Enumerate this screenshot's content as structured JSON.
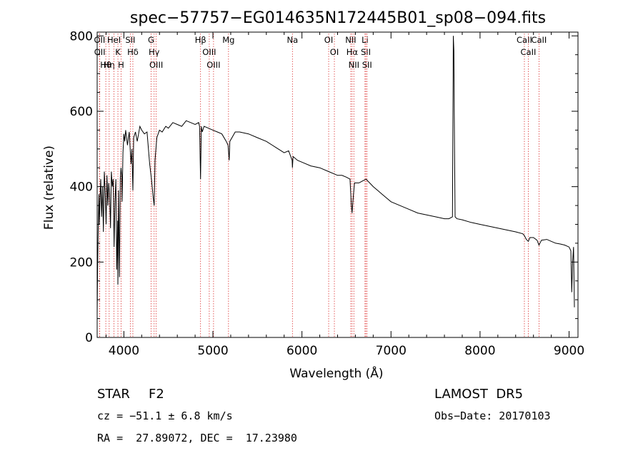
{
  "chart_data": {
    "type": "line",
    "title": "spec−57757−EG014635N172445B01_sp08−094.fits",
    "xlabel": "Wavelength (Å)",
    "ylabel": "Flux (relative)",
    "xlim": [
      3700,
      9100
    ],
    "ylim": [
      0,
      810
    ],
    "x_ticks": [
      4000,
      5000,
      6000,
      7000,
      8000,
      9000
    ],
    "y_ticks": [
      0,
      200,
      400,
      600,
      800
    ],
    "grid": false,
    "series": [
      {
        "x": [
          3700,
          3705,
          3710,
          3715,
          3720,
          3725,
          3730,
          3740,
          3750,
          3760,
          3770,
          3780,
          3790,
          3800,
          3810,
          3820,
          3830,
          3840,
          3850,
          3860,
          3870,
          3880,
          3890,
          3900,
          3910,
          3920,
          3930,
          3933,
          3940,
          3950,
          3960,
          3968,
          3975,
          3980,
          3990,
          4000,
          4010,
          4020,
          4040,
          4060,
          4080,
          4090,
          4101,
          4110,
          4130,
          4150,
          4180,
          4200,
          4230,
          4260,
          4290,
          4310,
          4330,
          4340,
          4350,
          4370,
          4400,
          4430,
          4470,
          4500,
          4550,
          4600,
          4650,
          4700,
          4750,
          4800,
          4840,
          4850,
          4861,
          4870,
          4880,
          4900,
          4950,
          5000,
          5050,
          5100,
          5150,
          5170,
          5183,
          5190,
          5250,
          5300,
          5400,
          5500,
          5600,
          5700,
          5800,
          5850,
          5890,
          5893,
          5900,
          5950,
          6000,
          6100,
          6200,
          6300,
          6400,
          6450,
          6500,
          6540,
          6555,
          6563,
          6572,
          6590,
          6640,
          6680,
          6720,
          6760,
          6800,
          6850,
          6900,
          6950,
          7000,
          7100,
          7200,
          7300,
          7400,
          7500,
          7600,
          7650,
          7690,
          7700,
          7706,
          7710,
          7720,
          7740,
          7800,
          7900,
          8000,
          8100,
          8200,
          8300,
          8400,
          8480,
          8498,
          8520,
          8542,
          8560,
          8600,
          8640,
          8662,
          8690,
          8750,
          8800,
          8850,
          8900,
          8950,
          9000,
          9020,
          9030,
          9040,
          9050,
          9060
        ],
        "y": [
          60,
          180,
          260,
          330,
          380,
          300,
          350,
          420,
          320,
          400,
          280,
          440,
          390,
          300,
          430,
          350,
          410,
          380,
          290,
          440,
          400,
          420,
          240,
          360,
          420,
          180,
          310,
          140,
          390,
          160,
          420,
          450,
          430,
          360,
          490,
          540,
          520,
          550,
          510,
          545,
          460,
          500,
          390,
          530,
          545,
          520,
          560,
          550,
          540,
          545,
          460,
          420,
          370,
          350,
          470,
          530,
          550,
          545,
          560,
          555,
          570,
          565,
          560,
          575,
          570,
          565,
          570,
          560,
          420,
          560,
          545,
          560,
          555,
          550,
          545,
          540,
          520,
          510,
          470,
          520,
          545,
          545,
          540,
          530,
          520,
          505,
          490,
          495,
          470,
          450,
          480,
          470,
          465,
          455,
          450,
          440,
          430,
          430,
          425,
          420,
          350,
          330,
          360,
          410,
          410,
          415,
          420,
          410,
          400,
          390,
          380,
          370,
          360,
          350,
          340,
          330,
          325,
          320,
          315,
          315,
          320,
          800,
          760,
          600,
          320,
          315,
          312,
          305,
          300,
          295,
          290,
          285,
          280,
          275,
          270,
          260,
          255,
          265,
          265,
          258,
          245,
          258,
          260,
          255,
          250,
          248,
          245,
          240,
          230,
          120,
          200,
          240,
          80
        ]
      }
    ],
    "annotations": [
      {
        "label": "Hθ",
        "wavelength": 3797
      },
      {
        "label": "OII",
        "wavelength": 3727
      },
      {
        "label": "OII",
        "wavelength": 3729
      },
      {
        "label": "Hη",
        "wavelength": 3835
      },
      {
        "label": "HeI",
        "wavelength": 3889
      },
      {
        "label": "K",
        "wavelength": 3933
      },
      {
        "label": "H",
        "wavelength": 3968
      },
      {
        "label": "Hδ",
        "wavelength": 4101
      },
      {
        "label": "SII",
        "wavelength": 4072
      },
      {
        "label": "OIII",
        "wavelength": 4363
      },
      {
        "label": "Hγ",
        "wavelength": 4340
      },
      {
        "label": "G",
        "wavelength": 4305
      },
      {
        "label": "Hβ",
        "wavelength": 4861
      },
      {
        "label": "OIII",
        "wavelength": 5007
      },
      {
        "label": "OIII",
        "wavelength": 4959
      },
      {
        "label": "Mg",
        "wavelength": 5175
      },
      {
        "label": "Na",
        "wavelength": 5893
      },
      {
        "label": "OI",
        "wavelength": 6300
      },
      {
        "label": "OI",
        "wavelength": 6364
      },
      {
        "label": "Hα",
        "wavelength": 6563
      },
      {
        "label": "NII",
        "wavelength": 6548
      },
      {
        "label": "NII",
        "wavelength": 6583
      },
      {
        "label": "SII",
        "wavelength": 6717
      },
      {
        "label": "Li",
        "wavelength": 6708
      },
      {
        "label": "SII",
        "wavelength": 6731
      },
      {
        "label": "CaII",
        "wavelength": 8542
      },
      {
        "label": "CaII",
        "wavelength": 8498
      },
      {
        "label": "CaII",
        "wavelength": 8662
      }
    ]
  },
  "info": {
    "object_class": "STAR",
    "subclass": "F2",
    "survey": "LAMOST  DR5",
    "cz_line": "cz = −51.1 ± 6.8 km/s",
    "obs_date": "Obs−Date: 20170103",
    "radec": "RA =  27.89072, DEC =  17.23980"
  }
}
